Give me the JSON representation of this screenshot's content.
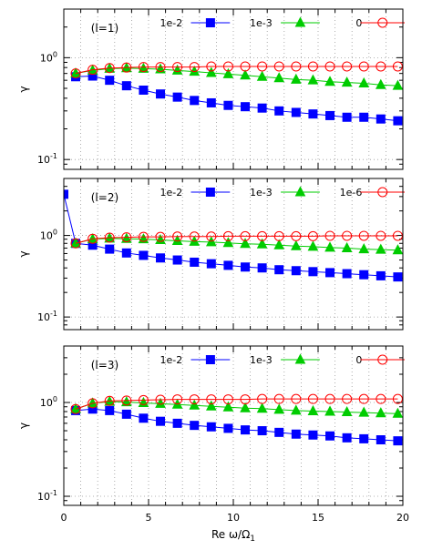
{
  "chart_data": [
    {
      "type": "line",
      "panel_label": "(l=1)",
      "ylabel": "γ",
      "yscale": "log",
      "ylim": [
        0.08,
        3.0
      ],
      "xlim": [
        0,
        20
      ],
      "yticks": [
        {
          "v": 1,
          "base": "10",
          "exp": "0"
        },
        {
          "v": 0.1,
          "base": "10",
          "exp": "-1"
        }
      ],
      "legend_position": "top",
      "series": [
        {
          "name": "1e-2",
          "color": "#0000ff",
          "marker": "square",
          "filled": true,
          "x": [
            0.7,
            1.7,
            2.7,
            3.7,
            4.7,
            5.7,
            6.7,
            7.7,
            8.7,
            9.7,
            10.7,
            11.7,
            12.7,
            13.7,
            14.7,
            15.7,
            16.7,
            17.7,
            18.7,
            19.7
          ],
          "y": [
            0.65,
            0.66,
            0.6,
            0.53,
            0.48,
            0.44,
            0.41,
            0.38,
            0.36,
            0.34,
            0.33,
            0.32,
            0.3,
            0.29,
            0.28,
            0.27,
            0.26,
            0.26,
            0.25,
            0.24
          ]
        },
        {
          "name": "1e-3",
          "color": "#00cc00",
          "marker": "triangle",
          "filled": true,
          "x": [
            0.7,
            1.7,
            2.7,
            3.7,
            4.7,
            5.7,
            6.7,
            7.7,
            8.7,
            9.7,
            10.7,
            11.7,
            12.7,
            13.7,
            14.7,
            15.7,
            16.7,
            17.7,
            18.7,
            19.7
          ],
          "y": [
            0.7,
            0.75,
            0.78,
            0.79,
            0.78,
            0.77,
            0.75,
            0.73,
            0.71,
            0.69,
            0.67,
            0.65,
            0.63,
            0.61,
            0.6,
            0.58,
            0.57,
            0.56,
            0.54,
            0.53
          ]
        },
        {
          "name": "0",
          "color": "#ff0000",
          "marker": "circle",
          "filled": false,
          "x": [
            0.7,
            1.7,
            2.7,
            3.7,
            4.7,
            5.7,
            6.7,
            7.7,
            8.7,
            9.7,
            10.7,
            11.7,
            12.7,
            13.7,
            14.7,
            15.7,
            16.7,
            17.7,
            18.7,
            19.7
          ],
          "y": [
            0.7,
            0.76,
            0.79,
            0.8,
            0.81,
            0.81,
            0.81,
            0.81,
            0.82,
            0.82,
            0.82,
            0.82,
            0.82,
            0.82,
            0.82,
            0.82,
            0.82,
            0.82,
            0.82,
            0.82
          ]
        }
      ]
    },
    {
      "type": "line",
      "panel_label": "(l=2)",
      "ylabel": "γ",
      "yscale": "log",
      "ylim": [
        0.07,
        5.0
      ],
      "xlim": [
        0,
        20
      ],
      "yticks": [
        {
          "v": 1,
          "base": "10",
          "exp": "0"
        },
        {
          "v": 0.1,
          "base": "10",
          "exp": "-1"
        }
      ],
      "legend_position": "top",
      "series": [
        {
          "name": "1e-2",
          "color": "#0000ff",
          "marker": "square",
          "filled": true,
          "x": [
            0.0,
            0.7,
            1.7,
            2.7,
            3.7,
            4.7,
            5.7,
            6.7,
            7.7,
            8.7,
            9.7,
            10.7,
            11.7,
            12.7,
            13.7,
            14.7,
            15.7,
            16.7,
            17.7,
            18.7,
            19.7
          ],
          "y": [
            3.2,
            0.8,
            0.76,
            0.68,
            0.61,
            0.57,
            0.53,
            0.5,
            0.47,
            0.45,
            0.43,
            0.41,
            0.4,
            0.38,
            0.37,
            0.36,
            0.35,
            0.34,
            0.33,
            0.32,
            0.31
          ]
        },
        {
          "name": "1e-3",
          "color": "#00cc00",
          "marker": "triangle",
          "filled": true,
          "x": [
            0.7,
            1.7,
            2.7,
            3.7,
            4.7,
            5.7,
            6.7,
            7.7,
            8.7,
            9.7,
            10.7,
            11.7,
            12.7,
            13.7,
            14.7,
            15.7,
            16.7,
            17.7,
            18.7,
            19.7
          ],
          "y": [
            0.8,
            0.9,
            0.92,
            0.91,
            0.9,
            0.88,
            0.86,
            0.84,
            0.83,
            0.81,
            0.79,
            0.78,
            0.76,
            0.74,
            0.73,
            0.71,
            0.7,
            0.68,
            0.67,
            0.66
          ]
        },
        {
          "name": "1e-6",
          "color": "#ff0000",
          "marker": "circle",
          "filled": false,
          "x": [
            0.7,
            1.7,
            2.7,
            3.7,
            4.7,
            5.7,
            6.7,
            7.7,
            8.7,
            9.7,
            10.7,
            11.7,
            12.7,
            13.7,
            14.7,
            15.7,
            16.7,
            17.7,
            18.7,
            19.7
          ],
          "y": [
            0.8,
            0.91,
            0.94,
            0.95,
            0.96,
            0.96,
            0.97,
            0.97,
            0.97,
            0.98,
            0.98,
            0.98,
            0.98,
            0.98,
            0.98,
            0.99,
            0.99,
            0.99,
            0.99,
            0.99
          ]
        }
      ]
    },
    {
      "type": "line",
      "panel_label": "(l=3)",
      "ylabel": "γ",
      "yscale": "log",
      "ylim": [
        0.08,
        4.0
      ],
      "xlim": [
        0,
        20
      ],
      "xlabel": "Re ω/Ω",
      "xlabel_sub": "1",
      "xticks": [
        0,
        5,
        10,
        15,
        20
      ],
      "yticks": [
        {
          "v": 1,
          "base": "10",
          "exp": "0"
        },
        {
          "v": 0.1,
          "base": "10",
          "exp": "-1"
        }
      ],
      "legend_position": "top",
      "series": [
        {
          "name": "1e-2",
          "color": "#0000ff",
          "marker": "square",
          "filled": true,
          "x": [
            0.7,
            1.7,
            2.7,
            3.7,
            4.7,
            5.7,
            6.7,
            7.7,
            8.7,
            9.7,
            10.7,
            11.7,
            12.7,
            13.7,
            14.7,
            15.7,
            16.7,
            17.7,
            18.7,
            19.7
          ],
          "y": [
            0.82,
            0.85,
            0.82,
            0.75,
            0.68,
            0.63,
            0.6,
            0.57,
            0.55,
            0.53,
            0.51,
            0.5,
            0.48,
            0.46,
            0.45,
            0.44,
            0.42,
            0.41,
            0.4,
            0.39
          ]
        },
        {
          "name": "1e-3",
          "color": "#00cc00",
          "marker": "triangle",
          "filled": true,
          "x": [
            0.7,
            1.7,
            2.7,
            3.7,
            4.7,
            5.7,
            6.7,
            7.7,
            8.7,
            9.7,
            10.7,
            11.7,
            12.7,
            13.7,
            14.7,
            15.7,
            16.7,
            17.7,
            18.7,
            19.7
          ],
          "y": [
            0.85,
            0.98,
            1.02,
            1.01,
            0.99,
            0.97,
            0.95,
            0.93,
            0.91,
            0.89,
            0.87,
            0.86,
            0.84,
            0.82,
            0.81,
            0.8,
            0.79,
            0.78,
            0.77,
            0.76
          ]
        },
        {
          "name": "0",
          "color": "#ff0000",
          "marker": "circle",
          "filled": false,
          "x": [
            0.7,
            1.7,
            2.7,
            3.7,
            4.7,
            5.7,
            6.7,
            7.7,
            8.7,
            9.7,
            10.7,
            11.7,
            12.7,
            13.7,
            14.7,
            15.7,
            16.7,
            17.7,
            18.7,
            19.7
          ],
          "y": [
            0.85,
            0.98,
            1.04,
            1.05,
            1.06,
            1.07,
            1.08,
            1.08,
            1.08,
            1.08,
            1.08,
            1.09,
            1.09,
            1.09,
            1.09,
            1.09,
            1.09,
            1.09,
            1.09,
            1.09
          ]
        }
      ]
    }
  ]
}
